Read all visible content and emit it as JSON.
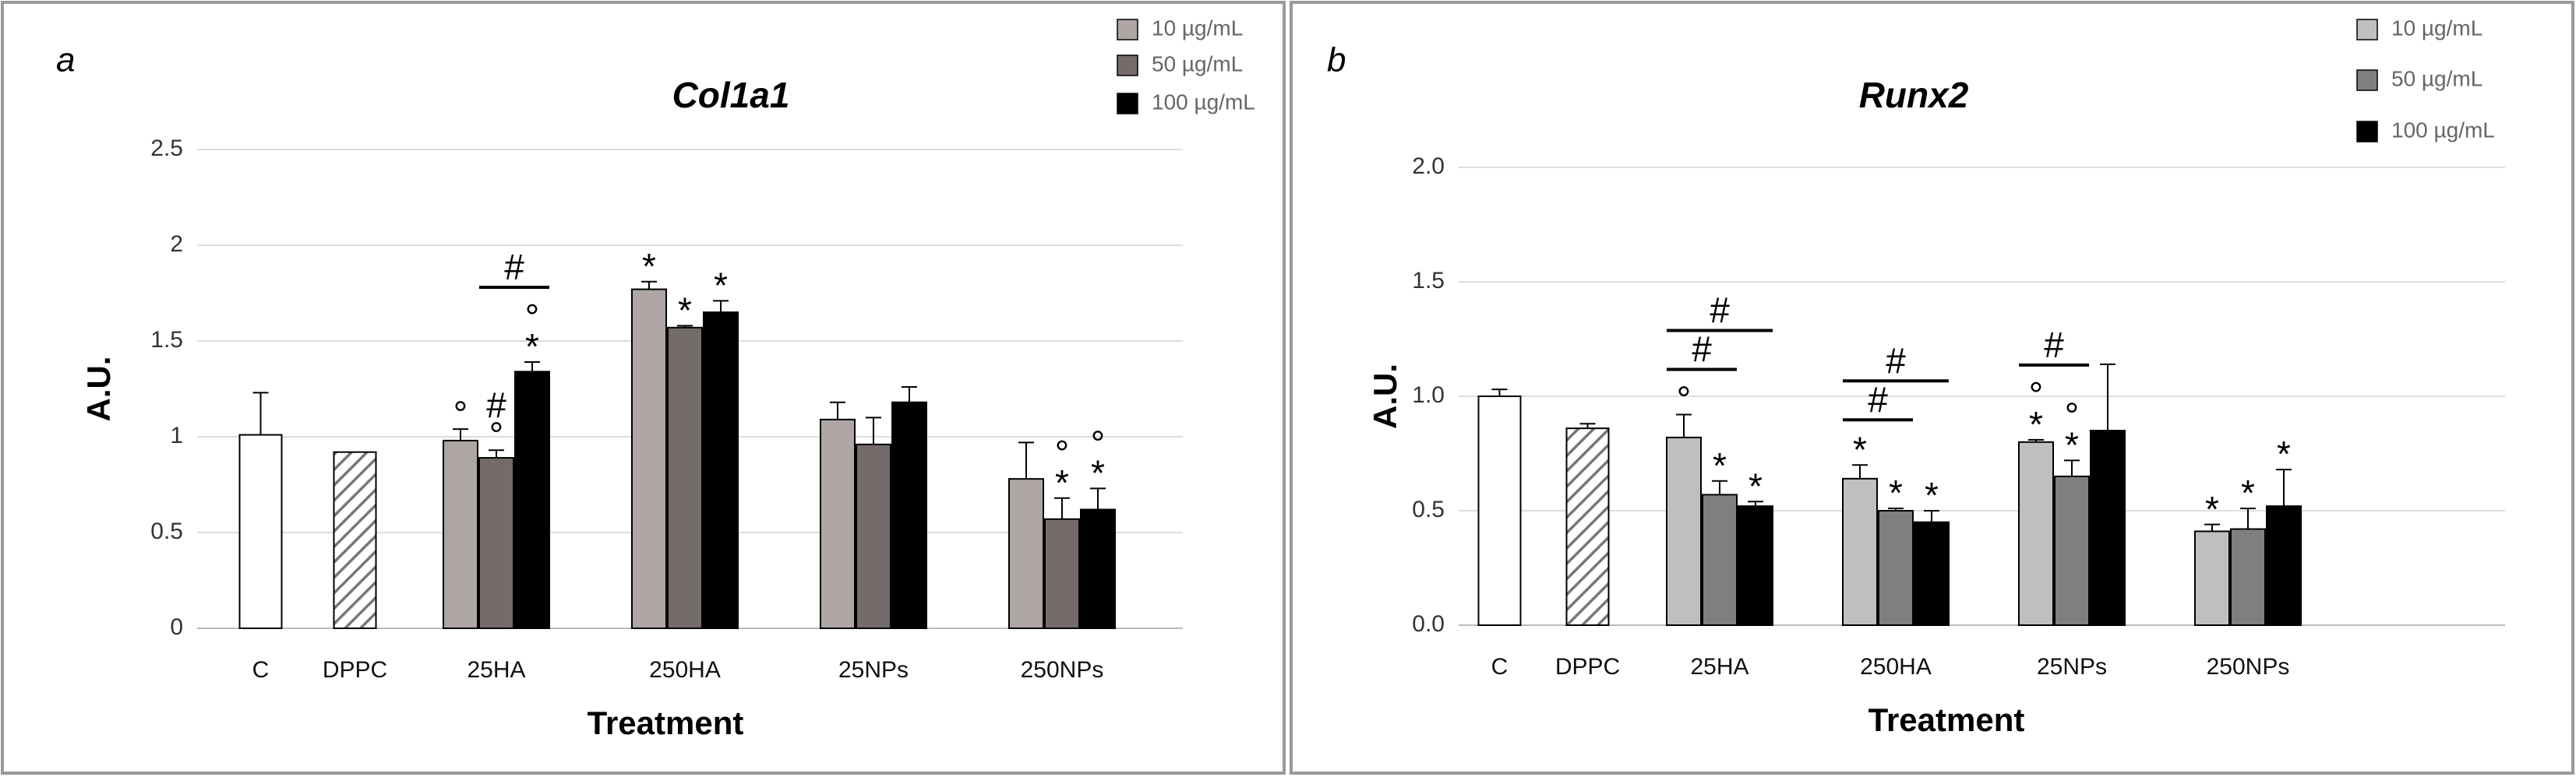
{
  "chart_data": [
    {
      "type": "bar",
      "panel": "a",
      "title": "Col1a1",
      "xlabel": "Treatment",
      "ylabel": "A.U.",
      "categories": [
        "C",
        "DPPC",
        "25HA",
        "250HA",
        "25NPs",
        "250NPs"
      ],
      "ylim": [
        0,
        2.5
      ],
      "yticks": [
        0,
        0.5,
        1,
        1.5,
        2,
        2.5
      ],
      "grid": true,
      "control": {
        "values": [
          1.01,
          0.92,
          null,
          null,
          null,
          null
        ],
        "errors": [
          0.22,
          null,
          null,
          null,
          null,
          null
        ],
        "fills": [
          "#ffffff",
          "hatched",
          null,
          null,
          null,
          null
        ]
      },
      "series": [
        {
          "name": "10 µg/mL",
          "color": "#aea6a5",
          "values": [
            null,
            null,
            0.98,
            1.77,
            1.09,
            0.78
          ],
          "errors": [
            null,
            null,
            0.06,
            0.04,
            0.09,
            0.19
          ],
          "markers": [
            [],
            [],
            [
              "°"
            ],
            [
              "*"
            ],
            [],
            []
          ]
        },
        {
          "name": "50 µg/mL",
          "color": "#736c6b",
          "values": [
            null,
            null,
            0.89,
            1.57,
            0.96,
            0.57
          ],
          "errors": [
            null,
            null,
            0.04,
            0.01,
            0.14,
            0.11
          ],
          "markers": [
            [],
            [],
            [
              "°",
              "#"
            ],
            [
              "*"
            ],
            [],
            [
              "*",
              "°"
            ]
          ]
        },
        {
          "name": "100 µg/mL",
          "color": "#000000",
          "values": [
            null,
            null,
            1.34,
            1.65,
            1.18,
            0.62
          ],
          "errors": [
            null,
            null,
            0.05,
            0.06,
            0.08,
            0.11
          ],
          "markers": [
            [],
            [],
            [
              "*",
              "°"
            ],
            [
              "*"
            ],
            [],
            [
              "*",
              "°"
            ]
          ]
        }
      ],
      "brackets": [
        {
          "text": "#",
          "category": 2,
          "from": 1,
          "to": 2
        }
      ]
    },
    {
      "type": "bar",
      "panel": "b",
      "title": "Runx2",
      "xlabel": "Treatment",
      "ylabel": "A.U.",
      "categories": [
        "C",
        "DPPC",
        "25HA",
        "250HA",
        "25NPs",
        "250NPs"
      ],
      "ylim": [
        0,
        2.0
      ],
      "yticks": [
        {
          "value": 0,
          "label": "0.0"
        },
        {
          "value": 0.5,
          "label": "0.5"
        },
        {
          "value": 1,
          "label": "1.0"
        },
        {
          "value": 1.5,
          "label": "1.5"
        },
        {
          "value": 2,
          "label": "2.0"
        }
      ],
      "grid": true,
      "control": {
        "values": [
          1.0,
          0.86,
          null,
          null,
          null,
          null
        ],
        "errors": [
          0.03,
          0.02,
          null,
          null,
          null,
          null
        ],
        "fills": [
          "#ffffff",
          "hatched",
          null,
          null,
          null,
          null
        ]
      },
      "series": [
        {
          "name": "10 µg/mL",
          "color": "#bfbfbf",
          "values": [
            null,
            null,
            0.82,
            0.64,
            0.8,
            0.41
          ],
          "errors": [
            null,
            null,
            0.1,
            0.06,
            0.01,
            0.03
          ],
          "markers": [
            [],
            [],
            [
              "°"
            ],
            [
              "*"
            ],
            [
              "*",
              "°"
            ],
            [
              "*"
            ]
          ]
        },
        {
          "name": "50 µg/mL",
          "color": "#7f7f7f",
          "values": [
            null,
            null,
            0.57,
            0.5,
            0.65,
            0.42
          ],
          "errors": [
            null,
            null,
            0.06,
            0.01,
            0.07,
            0.09
          ],
          "markers": [
            [],
            [],
            [
              "*"
            ],
            [
              "*"
            ],
            [
              "*",
              "°"
            ],
            [
              "*"
            ]
          ]
        },
        {
          "name": "100 µg/mL",
          "color": "#000000",
          "values": [
            null,
            null,
            0.52,
            0.45,
            0.85,
            0.52
          ],
          "errors": [
            null,
            null,
            0.02,
            0.05,
            0.29,
            0.16
          ],
          "markers": [
            [],
            [],
            [
              "*"
            ],
            [
              "*"
            ],
            [],
            [
              "*"
            ]
          ]
        }
      ],
      "brackets": [
        {
          "text": "#",
          "category": 2,
          "from": 0,
          "to": 1
        },
        {
          "text": "#",
          "category": 2,
          "from": 0,
          "to": 2
        },
        {
          "text": "#",
          "category": 3,
          "from": 0,
          "to": 1
        },
        {
          "text": "#",
          "category": 3,
          "from": 0,
          "to": 2
        },
        {
          "text": "#",
          "category": 4,
          "from": 0,
          "to": 1
        }
      ]
    }
  ]
}
